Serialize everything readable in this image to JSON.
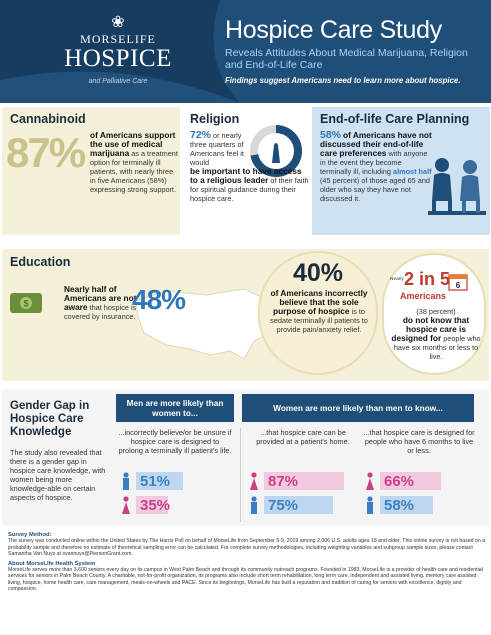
{
  "header": {
    "logo_brand": "MORSELIFE",
    "logo_name": "HOSPICE",
    "logo_sub": "and Palliative Care",
    "title": "Hospice Care Study",
    "subtitle": "Reveals Attitudes About Medical Marijuana, Religion and End-of-Life Care",
    "tagline": "Findings suggest Americans need to learn more about hospice."
  },
  "cannabinoid": {
    "title": "Cannabinoid",
    "pct": "87%",
    "bold": "of Americans support the use of medical marijuana",
    "rest": "as a treatment option for terminally ill patients, with nearly three in five Americans (58%) expressing strong support."
  },
  "religion": {
    "title": "Religion",
    "pct": "72%",
    "pre": "or nearly three quarters of Americans feel it would",
    "bold": "be important to have access to a religious leader",
    "rest": "of their faith for spiritual guidance during their hospice care.",
    "ring_fraction": 0.72
  },
  "eol": {
    "title": "End-of-life Care Planning",
    "pct": "58%",
    "bold": "of Americans have not discussed their end-of-life care preferences",
    "mid": "with anyone in the event they become terminally ill, including",
    "hl": "almost half",
    "rest": "(45 percent) of those aged 65 and older who say they have not discussed it."
  },
  "education": {
    "title": "Education",
    "stat1_bold": "Nearly half of Americans are not aware",
    "stat1_rest": "that hospice is covered by insurance.",
    "stat1_pct": "48%",
    "stat2_pct": "40%",
    "stat2_bold": "of Americans incorrectly believe that the sole purpose of hospice",
    "stat2_rest": "is to sedate terminally ill patients to provide pain/anxiety relief.",
    "stat3_nearly": "Nearly",
    "stat3_big": "2 in 5",
    "stat3_amer": "Americans",
    "stat3_paren": "(38 percent)",
    "stat3_bold": "do not know that hospice care is designed for",
    "stat3_rest": "people who have six months or less to live.",
    "cal_num": "6"
  },
  "gender": {
    "title": "Gender Gap in Hospice Care Knowledge",
    "text": "The study also revealed that there is a gender gap in hospice care knowledge, with women being more knowledge-able on certain aspects of hospice.",
    "banner_men": "Men are more likely than women to...",
    "banner_women": "Women are more likely than men to know...",
    "q1": "...incorrectly believe/or be unsure if hospice care is designed to prolong a terminally ill patient's life.",
    "q2": "...that hospice care can be provided at a patient's home.",
    "q3": "...that hospice care is designed for people who have 6 months to live or less.",
    "men_color": "#3b7fc1",
    "women_color": "#c9408a",
    "col1": {
      "men": "51%",
      "women": "35%",
      "men_v": 51,
      "women_v": 35
    },
    "col2": {
      "women": "87%",
      "men": "75%",
      "women_v": 87,
      "men_v": 75
    },
    "col3": {
      "women": "66%",
      "men": "58%",
      "women_v": 66,
      "men_v": 58
    }
  },
  "footer": {
    "method_head": "Survey Method:",
    "method": "The survey was conducted online within the United States by The Harris Poll on behalf of MorseLife from September 5-9, 2019 among 2,006 U.S. adults ages 18 and older. This online survey is not based on a probability sample and therefore no estimate of theoretical sampling error can be calculated. For complete survey methodologies, including weighting variables and subgroup sample sizes, please contact Samantha Van Nuys at svannuys@PiersonGrant.com.",
    "about_head": "About MorseLife Health System",
    "about": "MorseLife serves more than 3,600 seniors every day on its campus in West Palm Beach and through its community outreach programs. Founded in 1983, MorseLife is a provider of health care and residential services for seniors in Palm Beach County. A charitable, not-for-profit organization, its programs also include short term rehabilitation, long term care, independent and assisted living, memory care assisted living, hospice, home health care, care management, meals-on-wheels and PACE. Since its beginnings, MorseLife has built a reputation and tradition of caring for seniors with excellence, dignity and compassion."
  }
}
